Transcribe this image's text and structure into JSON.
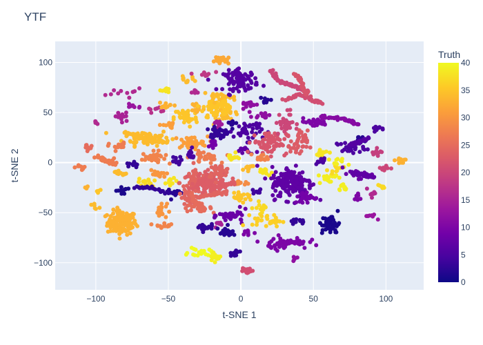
{
  "chart_data": {
    "type": "scatter",
    "title": "YTF",
    "xlabel": "t-SNE 1",
    "ylabel": "t-SNE 2",
    "xlim": [
      -128,
      126
    ],
    "ylim": [
      -127,
      121
    ],
    "x_ticks": [
      -100,
      -50,
      0,
      50,
      100
    ],
    "y_ticks": [
      -100,
      -50,
      0,
      50,
      100
    ],
    "x_tick_labels": [
      "−100",
      "−50",
      "0",
      "50",
      "100"
    ],
    "y_tick_labels": [
      "−100",
      "−50",
      "0",
      "50",
      "100"
    ],
    "grid": true,
    "colorbar": {
      "title": "Truth",
      "range": [
        0,
        40
      ],
      "ticks": [
        0,
        5,
        10,
        15,
        20,
        25,
        30,
        35,
        40
      ],
      "tick_labels": [
        "0",
        "5",
        "10",
        "15",
        "20",
        "25",
        "30",
        "35",
        "40"
      ],
      "colorscale": [
        "#0d0887",
        "#46039f",
        "#7201a8",
        "#9c179e",
        "#bd3786",
        "#d8576b",
        "#ed7953",
        "#fb9f3a",
        "#fdca26",
        "#f0f921"
      ]
    },
    "plot_background": "#e5ecf6",
    "clusters": [
      {
        "cx": -82,
        "cy": -60,
        "sx": 5,
        "sy": 6,
        "n": 130,
        "v": 33
      },
      {
        "cx": -65,
        "cy": 25,
        "sx": 8,
        "sy": 4,
        "n": 60,
        "v": 34
      },
      {
        "cx": -60,
        "cy": 5,
        "sx": 4,
        "sy": 3,
        "n": 30,
        "v": 28
      },
      {
        "cx": -55,
        "cy": -48,
        "sx": 2,
        "sy": 4,
        "n": 20,
        "v": 30
      },
      {
        "cx": -53,
        "cy": -62,
        "sx": 3,
        "sy": 1.5,
        "n": 12,
        "v": 28
      },
      {
        "cx": -48,
        "cy": -20,
        "sx": 2,
        "sy": 2,
        "n": 10,
        "v": 38
      },
      {
        "cx": -45,
        "cy": -30,
        "sx": 3,
        "sy": 2,
        "n": 12,
        "v": 2
      },
      {
        "cx": -35,
        "cy": -35,
        "sx": 4,
        "sy": 3,
        "n": 25,
        "v": 24
      },
      {
        "cx": -30,
        "cy": -45,
        "sx": 5,
        "sy": 2,
        "n": 25,
        "v": 25
      },
      {
        "cx": -30,
        "cy": -20,
        "sx": 6,
        "sy": 6,
        "n": 80,
        "v": 24
      },
      {
        "cx": -20,
        "cy": -20,
        "sx": 6,
        "sy": 6,
        "n": 90,
        "v": 23
      },
      {
        "cx": -15,
        "cy": -8,
        "sx": 4,
        "sy": 3,
        "n": 30,
        "v": 24
      },
      {
        "cx": -25,
        "cy": 5,
        "sx": 5,
        "sy": 3,
        "n": 30,
        "v": 27
      },
      {
        "cx": -35,
        "cy": 20,
        "sx": 6,
        "sy": 3,
        "n": 35,
        "v": 31
      },
      {
        "cx": -38,
        "cy": 45,
        "sx": 4,
        "sy": 5,
        "n": 40,
        "v": 35
      },
      {
        "cx": -30,
        "cy": 55,
        "sx": 2,
        "sy": 3,
        "n": 15,
        "v": 33
      },
      {
        "cx": -18,
        "cy": 55,
        "sx": 4,
        "sy": 6,
        "n": 50,
        "v": 35
      },
      {
        "cx": -10,
        "cy": 48,
        "sx": 3,
        "sy": 3,
        "n": 20,
        "v": 34
      },
      {
        "cx": -15,
        "cy": 30,
        "sx": 3,
        "sy": 3,
        "n": 20,
        "v": 3
      },
      {
        "cx": -20,
        "cy": 18,
        "sx": 2,
        "sy": 3,
        "n": 10,
        "v": 9
      },
      {
        "cx": -35,
        "cy": 8,
        "sx": 2,
        "sy": 3,
        "n": 12,
        "v": 5
      },
      {
        "cx": -45,
        "cy": 2,
        "sx": 2,
        "sy": 2,
        "n": 10,
        "v": 4
      },
      {
        "cx": -58,
        "cy": -12,
        "sx": 3,
        "sy": 3,
        "n": 15,
        "v": 30
      },
      {
        "cx": -65,
        "cy": -20,
        "sx": 3,
        "sy": 2,
        "n": 15,
        "v": 37
      },
      {
        "cx": -82,
        "cy": -28,
        "sx": 2,
        "sy": 2,
        "n": 12,
        "v": 1
      },
      {
        "cx": -75,
        "cy": -2,
        "sx": 2,
        "sy": 2,
        "n": 10,
        "v": 3
      },
      {
        "cx": -83,
        "cy": -10,
        "sx": 2,
        "sy": 1.5,
        "n": 10,
        "v": 34
      },
      {
        "cx": -85,
        "cy": 16,
        "sx": 3,
        "sy": 2,
        "n": 14,
        "v": 27
      },
      {
        "cx": -90,
        "cy": 0,
        "sx": 3,
        "sy": 2,
        "n": 12,
        "v": 27
      },
      {
        "cx": -105,
        "cy": 15,
        "sx": 1.5,
        "sy": 2.5,
        "n": 10,
        "v": 25
      },
      {
        "cx": -110,
        "cy": -5,
        "sx": 2,
        "sy": 1.5,
        "n": 8,
        "v": 27
      },
      {
        "cx": -100,
        "cy": -45,
        "sx": 1.5,
        "sy": 2,
        "n": 6,
        "v": 34
      },
      {
        "cx": -98,
        "cy": -30,
        "sx": 1.5,
        "sy": 1.5,
        "n": 4,
        "v": 35
      },
      {
        "cx": -106,
        "cy": -25,
        "sx": 1,
        "sy": 1,
        "n": 3,
        "v": 33
      },
      {
        "cx": -100,
        "cy": 40,
        "sx": 0.5,
        "sy": 1.5,
        "n": 4,
        "v": 16
      },
      {
        "cx": -82,
        "cy": 45,
        "sx": 3,
        "sy": 3,
        "n": 15,
        "v": 15
      },
      {
        "cx": -74,
        "cy": 57,
        "sx": 3,
        "sy": 1.5,
        "n": 10,
        "v": 13
      },
      {
        "cx": -80,
        "cy": 70,
        "sx": 6,
        "sy": 2,
        "n": 10,
        "v": 16
      },
      {
        "cx": -60,
        "cy": 53,
        "sx": 3,
        "sy": 1.5,
        "n": 8,
        "v": 17
      },
      {
        "cx": -52,
        "cy": 72,
        "sx": 2,
        "sy": 1.5,
        "n": 10,
        "v": 38
      },
      {
        "cx": -50,
        "cy": 58,
        "sx": 3,
        "sy": 1.5,
        "n": 10,
        "v": 33
      },
      {
        "cx": -50,
        "cy": 37,
        "sx": 3,
        "sy": 1.5,
        "n": 10,
        "v": 31
      },
      {
        "cx": -38,
        "cy": 83,
        "sx": 3,
        "sy": 1.5,
        "n": 10,
        "v": 34
      },
      {
        "cx": -25,
        "cy": 88,
        "sx": 3,
        "sy": 2,
        "n": 10,
        "v": 18
      },
      {
        "cx": -32,
        "cy": 70,
        "sx": 1.5,
        "sy": 1.5,
        "n": 6,
        "v": 16
      },
      {
        "cx": -16,
        "cy": 40,
        "sx": 3,
        "sy": 2,
        "n": 10,
        "v": 14
      },
      {
        "cx": -5,
        "cy": 40,
        "sx": 2,
        "sy": 2,
        "n": 8,
        "v": 2
      },
      {
        "cx": -15,
        "cy": 65,
        "sx": 6,
        "sy": 2,
        "n": 20,
        "v": 34
      },
      {
        "cx": -12,
        "cy": 102,
        "sx": 3,
        "sy": 2,
        "n": 25,
        "v": 32
      },
      {
        "cx": 0,
        "cy": 82,
        "sx": 6,
        "sy": 5,
        "n": 80,
        "v": 6
      },
      {
        "cx": 5,
        "cy": 58,
        "sx": 3,
        "sy": 2,
        "n": 15,
        "v": 12
      },
      {
        "cx": 5,
        "cy": 32,
        "sx": 5,
        "sy": 5,
        "n": 40,
        "v": 5
      },
      {
        "cx": -15,
        "cy": 29,
        "sx": 3,
        "sy": 3,
        "n": 15,
        "v": 3
      },
      {
        "cx": 3,
        "cy": 12,
        "sx": 3,
        "sy": 2,
        "n": 12,
        "v": 7
      },
      {
        "cx": -6,
        "cy": 5,
        "sx": 2,
        "sy": 2,
        "n": 12,
        "v": 38
      },
      {
        "cx": 5,
        "cy": -5,
        "sx": 3,
        "sy": 1.5,
        "n": 10,
        "v": 34
      },
      {
        "cx": 0,
        "cy": -20,
        "sx": 3,
        "sy": 1.5,
        "n": 10,
        "v": 29
      },
      {
        "cx": 0,
        "cy": -35,
        "sx": 4,
        "sy": 2,
        "n": 20,
        "v": 35
      },
      {
        "cx": -5,
        "cy": -53,
        "sx": 5,
        "sy": 3,
        "n": 30,
        "v": 8
      },
      {
        "cx": -15,
        "cy": -62,
        "sx": 2,
        "sy": 2,
        "n": 10,
        "v": 15
      },
      {
        "cx": -25,
        "cy": -65,
        "sx": 3,
        "sy": 2,
        "n": 20,
        "v": 3
      },
      {
        "cx": -10,
        "cy": -70,
        "sx": 3,
        "sy": 3,
        "n": 20,
        "v": 2
      },
      {
        "cx": 5,
        "cy": -70,
        "sx": 2,
        "sy": 2,
        "n": 10,
        "v": 10
      },
      {
        "cx": -28,
        "cy": -90,
        "sx": 4,
        "sy": 2,
        "n": 20,
        "v": 40
      },
      {
        "cx": -18,
        "cy": -95,
        "sx": 2,
        "sy": 2,
        "n": 12,
        "v": 39
      },
      {
        "cx": -5,
        "cy": -90,
        "sx": 2,
        "sy": 1.5,
        "n": 10,
        "v": 3
      },
      {
        "cx": 5,
        "cy": -108,
        "sx": 3,
        "sy": 1.5,
        "n": 15,
        "v": 21
      },
      {
        "cx": 15,
        "cy": 48,
        "sx": 3,
        "sy": 2,
        "n": 12,
        "v": 12
      },
      {
        "cx": 17,
        "cy": 62,
        "sx": 2,
        "sy": 1.5,
        "n": 8,
        "v": 2
      },
      {
        "cx": 20,
        "cy": 20,
        "sx": 6,
        "sy": 6,
        "n": 70,
        "v": 22
      },
      {
        "cx": 30,
        "cy": 40,
        "sx": 3,
        "sy": 6,
        "n": 30,
        "v": 20
      },
      {
        "cx": 40,
        "cy": 18,
        "sx": 3,
        "sy": 7,
        "n": 40,
        "v": 23
      },
      {
        "cx": 15,
        "cy": 5,
        "sx": 3,
        "sy": 2,
        "n": 12,
        "v": 28
      },
      {
        "cx": 15,
        "cy": -10,
        "sx": 3,
        "sy": 2,
        "n": 12,
        "v": 38
      },
      {
        "cx": 12,
        "cy": -28,
        "sx": 2,
        "sy": 2,
        "n": 8,
        "v": 4
      },
      {
        "cx": 15,
        "cy": -45,
        "sx": 3,
        "sy": 3,
        "n": 15,
        "v": 37
      },
      {
        "cx": 18,
        "cy": -58,
        "sx": 5,
        "sy": 3,
        "n": 30,
        "v": 36
      },
      {
        "cx": 35,
        "cy": -20,
        "sx": 7,
        "sy": 8,
        "n": 160,
        "v": 7
      },
      {
        "cx": 45,
        "cy": -35,
        "sx": 4,
        "sy": 3,
        "n": 30,
        "v": 9
      },
      {
        "cx": 40,
        "cy": -58,
        "sx": 4,
        "sy": 1.5,
        "n": 15,
        "v": 3
      },
      {
        "cx": 30,
        "cy": -80,
        "sx": 8,
        "sy": 3,
        "n": 40,
        "v": 10
      },
      {
        "cx": 38,
        "cy": -97,
        "sx": 1.5,
        "sy": 1.5,
        "n": 5,
        "v": 12
      },
      {
        "cx": 50,
        "cy": 40,
        "sx": 5,
        "sy": 2,
        "n": 30,
        "v": 10
      },
      {
        "cx": 55,
        "cy": 10,
        "sx": 3,
        "sy": 2,
        "n": 14,
        "v": 38
      },
      {
        "cx": 55,
        "cy": 2,
        "sx": 2,
        "sy": 1.5,
        "n": 10,
        "v": 5
      },
      {
        "cx": 60,
        "cy": -15,
        "sx": 3,
        "sy": 3,
        "n": 20,
        "v": 39
      },
      {
        "cx": 65,
        "cy": -5,
        "sx": 2,
        "sy": 2,
        "n": 10,
        "v": 37
      },
      {
        "cx": 68,
        "cy": 0,
        "sx": 3,
        "sy": 2,
        "n": 10,
        "v": 39
      },
      {
        "cx": 70,
        "cy": -25,
        "sx": 2,
        "sy": 2,
        "n": 10,
        "v": 39
      },
      {
        "cx": 62,
        "cy": -62,
        "sx": 3,
        "sy": 5,
        "n": 50,
        "v": 1
      },
      {
        "cx": 80,
        "cy": -35,
        "sx": 1.5,
        "sy": 2,
        "n": 8,
        "v": 10
      },
      {
        "cx": 75,
        "cy": 15,
        "sx": 5,
        "sy": 3,
        "n": 25,
        "v": 5
      },
      {
        "cx": 82,
        "cy": 22,
        "sx": 2,
        "sy": 2,
        "n": 10,
        "v": 2
      },
      {
        "cx": 80,
        "cy": -12,
        "sx": 5,
        "sy": 2,
        "n": 20,
        "v": 8
      },
      {
        "cx": 90,
        "cy": -30,
        "sx": 2,
        "sy": 2,
        "n": 10,
        "v": 16
      },
      {
        "cx": 95,
        "cy": 10,
        "sx": 2,
        "sy": 2,
        "n": 10,
        "v": 19
      },
      {
        "cx": 95,
        "cy": 33,
        "sx": 2,
        "sy": 1.5,
        "n": 10,
        "v": 5
      },
      {
        "cx": 98,
        "cy": -5,
        "sx": 2,
        "sy": 2,
        "n": 10,
        "v": 20
      },
      {
        "cx": 97,
        "cy": -25,
        "sx": 1.5,
        "sy": 2,
        "n": 8,
        "v": 37
      },
      {
        "cx": 110,
        "cy": 2,
        "sx": 2,
        "sy": 2,
        "n": 12,
        "v": 33
      },
      {
        "cx": 90,
        "cy": -53,
        "sx": 2,
        "sy": 1.5,
        "n": 8,
        "v": 13
      },
      {
        "cx": -10,
        "cy": -53,
        "sx": 3,
        "sy": 1.5,
        "n": 10,
        "v": 8
      }
    ],
    "trails": [
      {
        "pts": [
          [
            20,
            93
          ],
          [
            25,
            82
          ],
          [
            33,
            78
          ],
          [
            40,
            75
          ],
          [
            45,
            72
          ]
        ],
        "v": 20
      },
      {
        "pts": [
          [
            30,
            62
          ],
          [
            40,
            68
          ],
          [
            50,
            62
          ],
          [
            55,
            60
          ]
        ],
        "v": 21
      },
      {
        "pts": [
          [
            38,
            88
          ],
          [
            42,
            78
          ],
          [
            46,
            68
          ]
        ],
        "v": 22
      },
      {
        "pts": [
          [
            55,
            45
          ],
          [
            65,
            45
          ],
          [
            75,
            42
          ],
          [
            80,
            38
          ]
        ],
        "v": 11
      },
      {
        "pts": [
          [
            -35,
            -35
          ],
          [
            -20,
            -32
          ],
          [
            -10,
            -30
          ]
        ],
        "v": 24
      },
      {
        "pts": [
          [
            -12,
            62
          ],
          [
            -8,
            55
          ],
          [
            -12,
            48
          ]
        ],
        "v": 35
      },
      {
        "pts": [
          [
            20,
            -85
          ],
          [
            30,
            -78
          ],
          [
            40,
            -80
          ]
        ],
        "v": 10
      },
      {
        "pts": [
          [
            -80,
            30
          ],
          [
            -70,
            25
          ],
          [
            -60,
            22
          ],
          [
            -50,
            20
          ]
        ],
        "v": 34
      },
      {
        "pts": [
          [
            -72,
            -25
          ],
          [
            -62,
            -25
          ],
          [
            -50,
            -30
          ]
        ],
        "v": 3
      },
      {
        "pts": [
          [
            -30,
            -22
          ],
          [
            -20,
            -25
          ],
          [
            -10,
            -22
          ],
          [
            -5,
            -20
          ]
        ],
        "v": 23
      },
      {
        "pts": [
          [
            75,
            -10
          ],
          [
            85,
            -12
          ],
          [
            92,
            -15
          ]
        ],
        "v": 7
      },
      {
        "pts": [
          [
            -35,
            -30
          ],
          [
            -30,
            -42
          ],
          [
            -25,
            -48
          ]
        ],
        "v": 25
      },
      {
        "pts": [
          [
            75,
            18
          ],
          [
            82,
            20
          ],
          [
            88,
            25
          ]
        ],
        "v": 6
      },
      {
        "pts": [
          [
            -100,
            7
          ],
          [
            -92,
            2
          ],
          [
            -86,
            -2
          ]
        ],
        "v": 27
      }
    ]
  }
}
